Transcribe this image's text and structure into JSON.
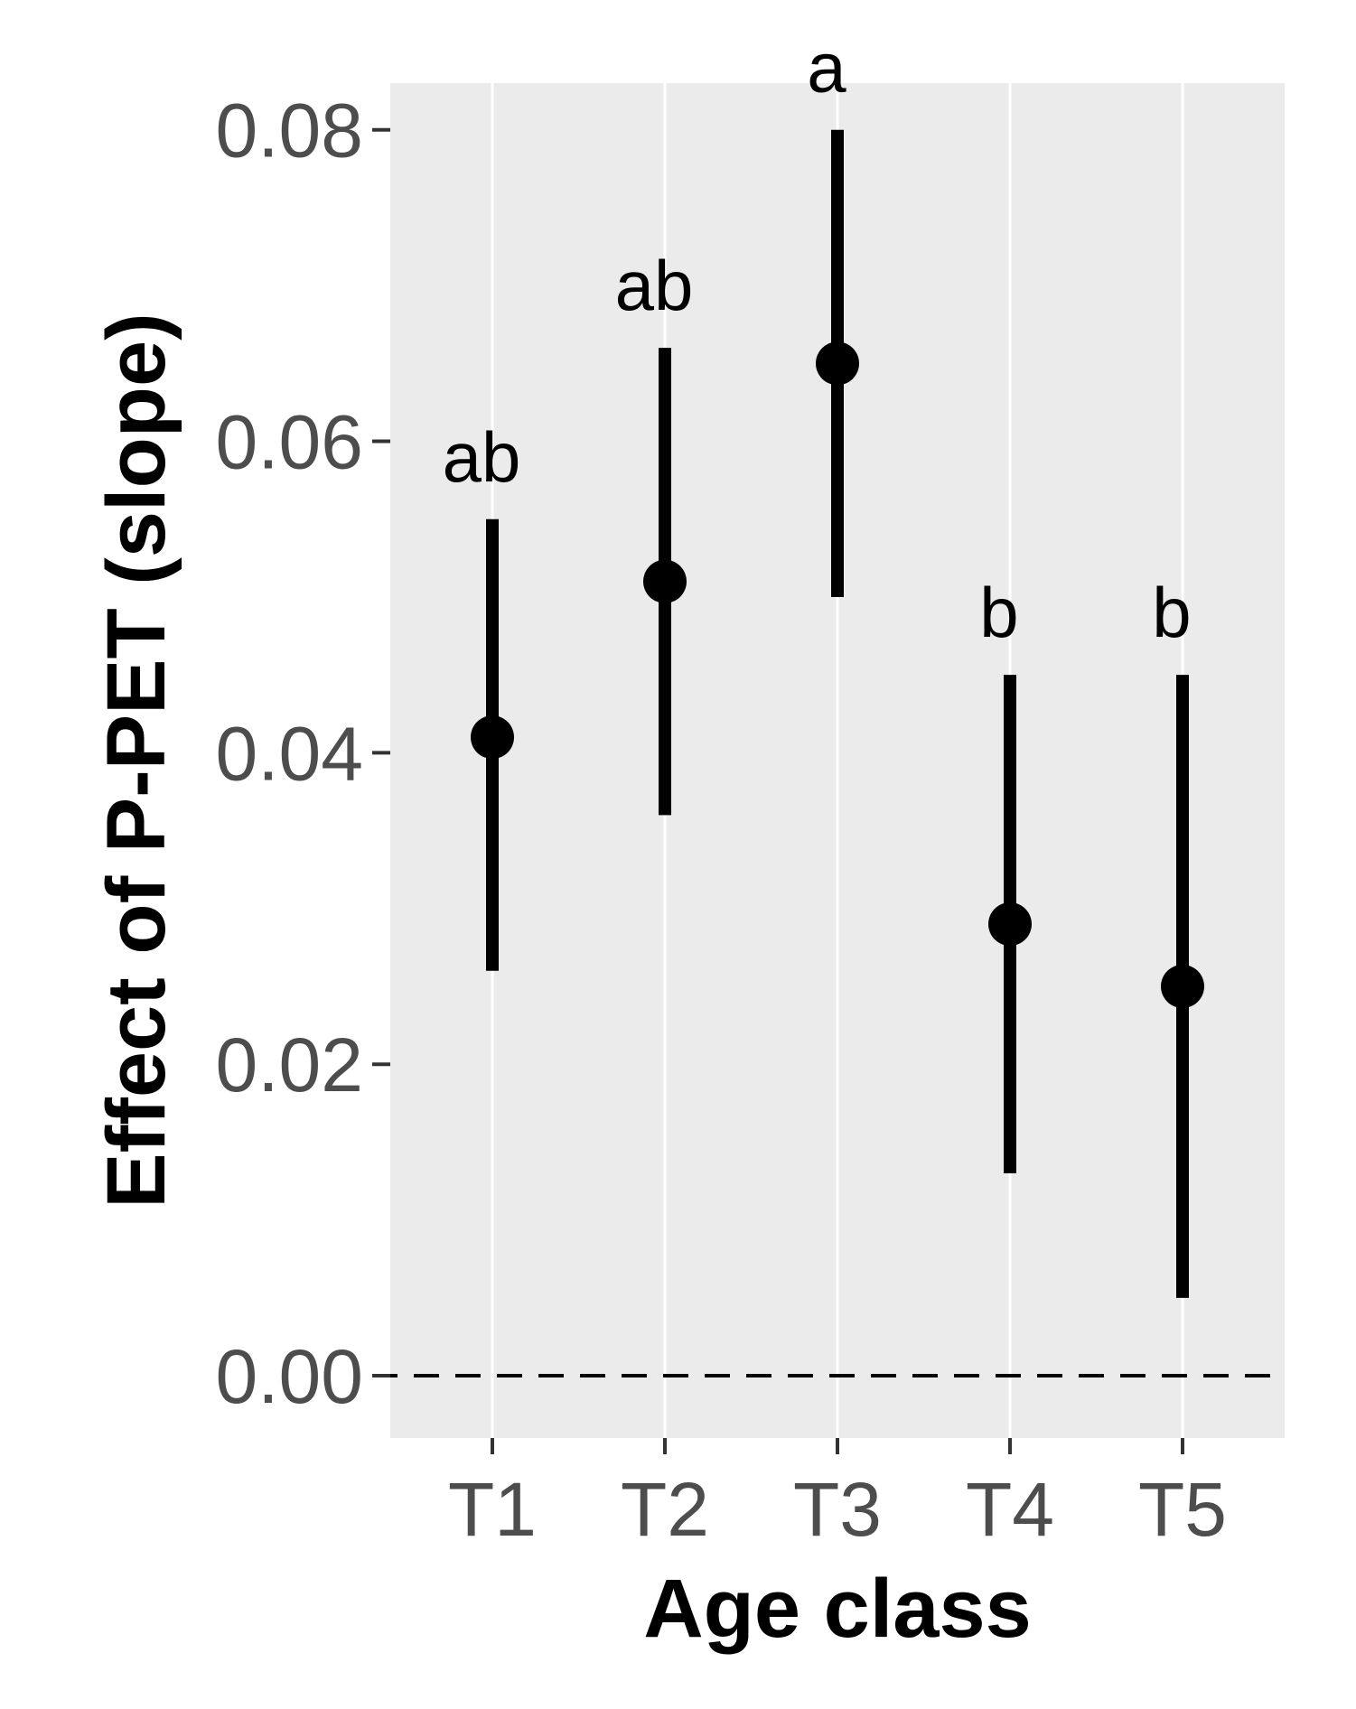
{
  "chart_data": {
    "type": "scatter",
    "title": "",
    "xlabel": "Age class",
    "ylabel": "Effect of P-PET (slope)",
    "categories": [
      "T1",
      "T2",
      "T3",
      "T4",
      "T5"
    ],
    "estimate": [
      0.041,
      0.051,
      0.065,
      0.029,
      0.025
    ],
    "ci_lower": [
      0.026,
      0.036,
      0.05,
      0.013,
      0.005
    ],
    "ci_upper": [
      0.055,
      0.066,
      0.08,
      0.045,
      0.045
    ],
    "letters": [
      "ab",
      "ab",
      "a",
      "b",
      "b"
    ],
    "yticks": [
      0.0,
      0.02,
      0.04,
      0.06,
      0.08
    ],
    "ytick_labels": [
      "0.00",
      "0.02",
      "0.04",
      "0.06",
      "0.08"
    ],
    "ylim": [
      -0.004,
      0.083
    ],
    "reference_line": {
      "y": 0.0,
      "style": "dashed"
    },
    "grid": "vertical major gridlines",
    "legend": "none",
    "colors": {
      "panel_background": "#ebebeb",
      "gridline": "#ffffff",
      "marker": "#000000",
      "tick_text": "#4d4d4d",
      "axis_title": "#000000"
    }
  }
}
